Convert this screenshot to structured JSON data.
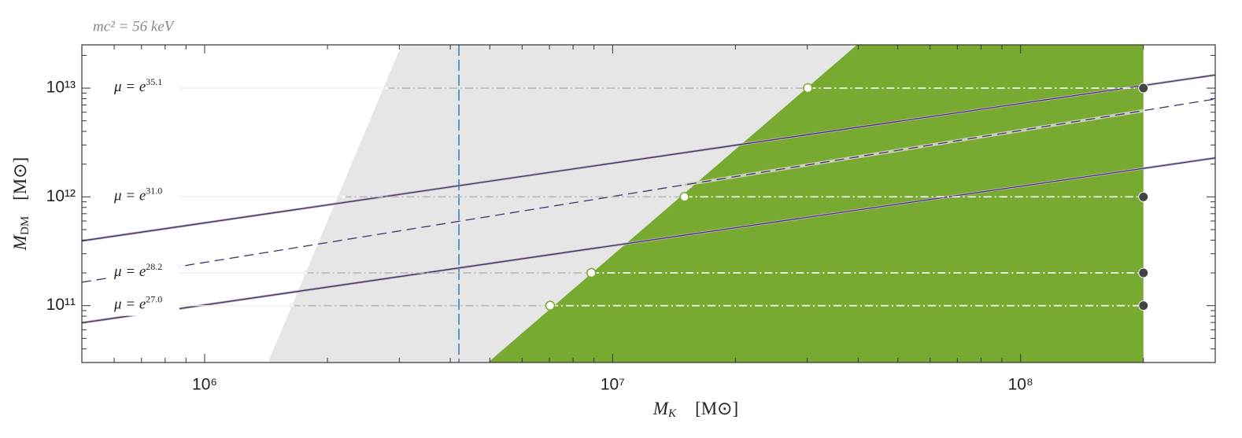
{
  "chart_data": {
    "type": "loglog-regions",
    "annotation": "mc² = 56 keV",
    "xlabel": {
      "symbol": "M",
      "sub": "K",
      "unit": "[M⊙]"
    },
    "ylabel": {
      "symbol": "M",
      "sub": "DM",
      "unit": "[M⊙]"
    },
    "xscale": "log",
    "yscale": "log",
    "xlim": [
      500000,
      300000000
    ],
    "ylim": [
      30000000000,
      25000000000000
    ],
    "xticks": [
      {
        "value": 1000000,
        "label": "10⁶"
      },
      {
        "value": 10000000,
        "label": "10⁷"
      },
      {
        "value": 100000000,
        "label": "10⁸"
      }
    ],
    "yticks": [
      {
        "value": 100000000000,
        "label": "10¹¹"
      },
      {
        "value": 1000000000000,
        "label": "10¹²"
      },
      {
        "value": 10000000000000,
        "label": "10¹³"
      }
    ],
    "xminorticks": [
      600000,
      700000,
      800000,
      900000,
      2000000,
      3000000,
      4000000,
      5000000,
      6000000,
      7000000,
      8000000,
      9000000,
      20000000,
      30000000,
      40000000,
      50000000,
      60000000,
      70000000,
      80000000,
      90000000,
      200000000,
      300000000
    ],
    "yminorticks": [
      40000000000,
      50000000000,
      60000000000,
      70000000000,
      80000000000,
      90000000000,
      200000000000,
      300000000000,
      400000000000,
      500000000000,
      600000000000,
      700000000000,
      800000000000,
      900000000000,
      2000000000000,
      3000000000000,
      4000000000000,
      5000000000000,
      6000000000000,
      7000000000000,
      8000000000000,
      9000000000000,
      20000000000000
    ],
    "regions": [
      {
        "color": "#e6e6e6",
        "x": [
          1430000,
          3040000,
          200000000,
          200000000
        ],
        "y": [
          30000000000,
          25000000000000,
          25000000000000,
          30000000000
        ]
      },
      {
        "color": "#78a931",
        "x": [
          4950000,
          39700000,
          200000000,
          200000000
        ],
        "y": [
          30000000000,
          25000000000000,
          25000000000000,
          30000000000
        ]
      }
    ],
    "vline": {
      "color": "#2a7bbf",
      "x": 4200000
    },
    "lines": [
      {
        "color": "#4b2d6e",
        "dash": "solid",
        "x": [
          500000,
          300000000
        ],
        "y": [
          394000000000,
          13200000000000
        ]
      },
      {
        "color": "#4b2d6e",
        "dash": "dashed",
        "x": [
          500000,
          300000000
        ],
        "y": [
          164000000000,
          7940000000000
        ]
      },
      {
        "color": "#4b2d6e",
        "dash": "solid",
        "x": [
          500000,
          300000000
        ],
        "y": [
          69500000000,
          2280000000000
        ]
      }
    ],
    "overlay": {
      "color": "#c8d0b8",
      "x": [
        15000000,
        200000000
      ],
      "y": [
        1290000000000,
        6200000000000
      ]
    },
    "levels": [
      {
        "label": "μ = e",
        "exponent": "35.1",
        "y": 10000000000000,
        "x_gray": 2790000,
        "x_green": 30100000,
        "x_end": 200000000
      },
      {
        "label": "μ = e",
        "exponent": "31.0",
        "y": 1000000000000,
        "x_gray": 2190000,
        "x_green": 15000000,
        "x_end": 200000000
      },
      {
        "label": "μ = e",
        "exponent": "28.2",
        "y": 200000000000,
        "x_gray": 1770000,
        "x_green": 8870000,
        "x_end": 200000000
      },
      {
        "label": "μ = e",
        "exponent": "27.0",
        "y": 100000000000,
        "x_gray": 1640000,
        "x_green": 7030000,
        "x_end": 200000000
      }
    ]
  }
}
